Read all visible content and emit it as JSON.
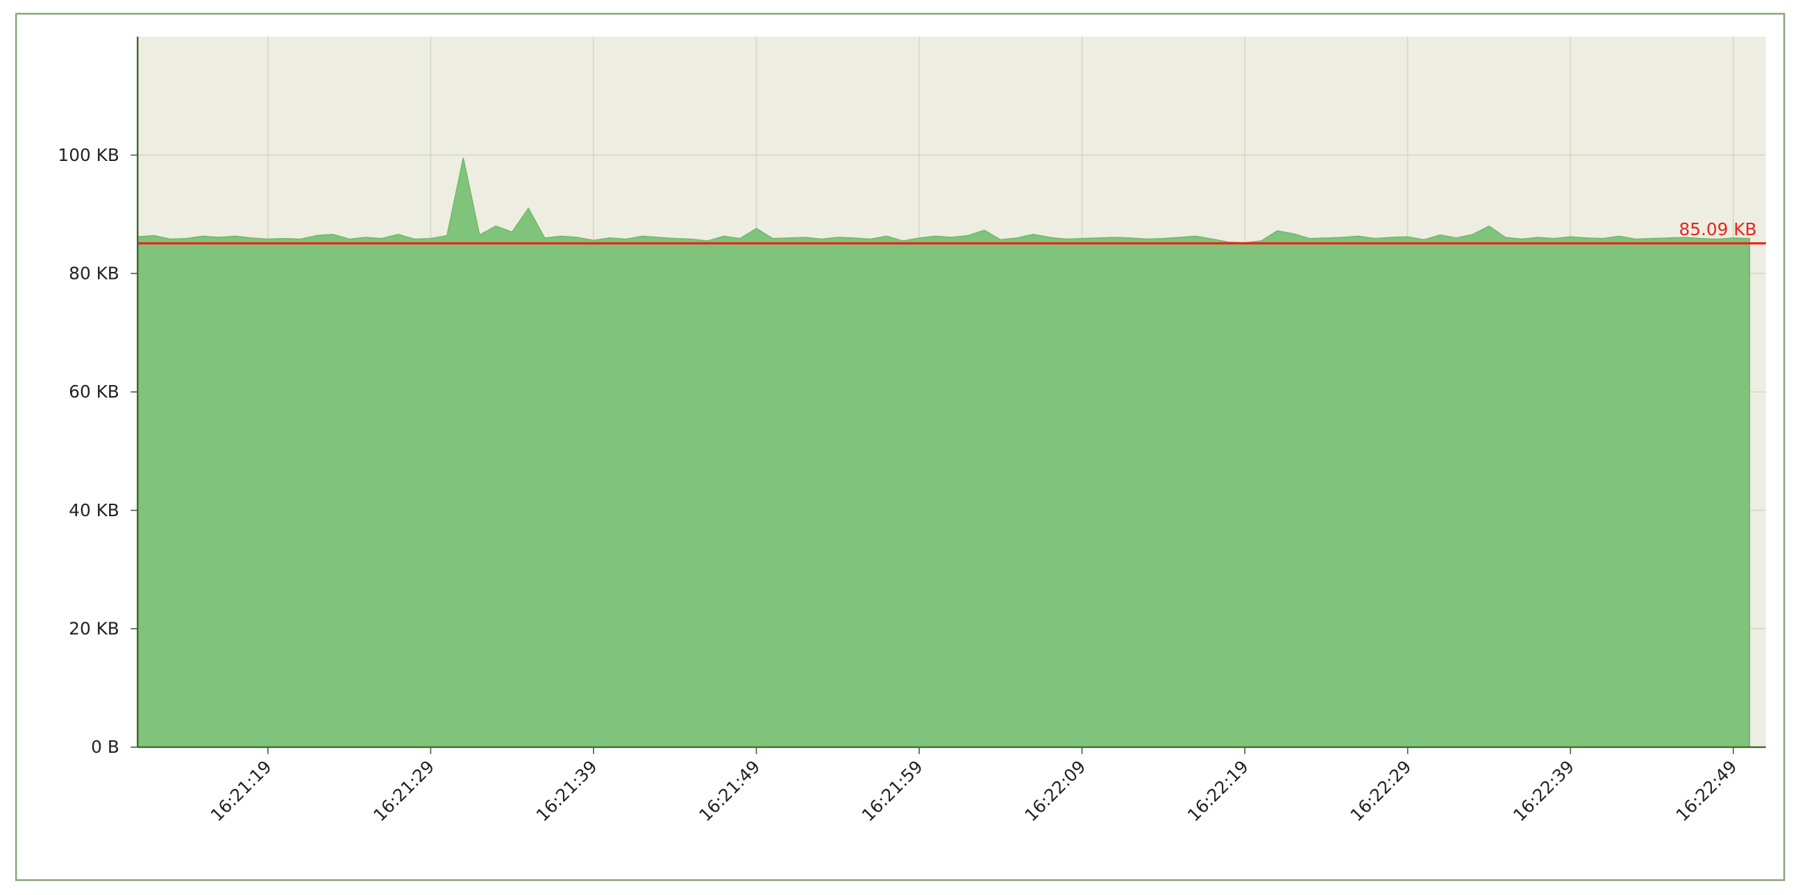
{
  "chart_data": {
    "type": "area",
    "x": [
      "16:21:11",
      "16:21:12",
      "16:21:13",
      "16:21:14",
      "16:21:15",
      "16:21:16",
      "16:21:17",
      "16:21:18",
      "16:21:19",
      "16:21:20",
      "16:21:21",
      "16:21:22",
      "16:21:23",
      "16:21:24",
      "16:21:25",
      "16:21:26",
      "16:21:27",
      "16:21:28",
      "16:21:29",
      "16:21:30",
      "16:21:31",
      "16:21:32",
      "16:21:33",
      "16:21:34",
      "16:21:35",
      "16:21:36",
      "16:21:37",
      "16:21:38",
      "16:21:39",
      "16:21:40",
      "16:21:41",
      "16:21:42",
      "16:21:43",
      "16:21:44",
      "16:21:45",
      "16:21:46",
      "16:21:47",
      "16:21:48",
      "16:21:49",
      "16:21:50",
      "16:21:51",
      "16:21:52",
      "16:21:53",
      "16:21:54",
      "16:21:55",
      "16:21:56",
      "16:21:57",
      "16:21:58",
      "16:21:59",
      "16:22:00",
      "16:22:01",
      "16:22:02",
      "16:22:03",
      "16:22:04",
      "16:22:05",
      "16:22:06",
      "16:22:07",
      "16:22:08",
      "16:22:09",
      "16:22:10",
      "16:22:11",
      "16:22:12",
      "16:22:13",
      "16:22:14",
      "16:22:15",
      "16:22:16",
      "16:22:17",
      "16:22:18",
      "16:22:19",
      "16:22:20",
      "16:22:21",
      "16:22:22",
      "16:22:23",
      "16:22:24",
      "16:22:25",
      "16:22:26",
      "16:22:27",
      "16:22:28",
      "16:22:29",
      "16:22:30",
      "16:22:31",
      "16:22:32",
      "16:22:33",
      "16:22:34",
      "16:22:35",
      "16:22:36",
      "16:22:37",
      "16:22:38",
      "16:22:39",
      "16:22:40",
      "16:22:41",
      "16:22:42",
      "16:22:43",
      "16:22:44",
      "16:22:45",
      "16:22:46",
      "16:22:47",
      "16:22:48",
      "16:22:49",
      "16:22:50"
    ],
    "values": [
      86.2,
      86.4,
      85.8,
      85.9,
      86.3,
      86.1,
      86.3,
      86.0,
      85.8,
      85.9,
      85.8,
      86.4,
      86.6,
      85.8,
      86.1,
      85.9,
      86.6,
      85.8,
      85.9,
      86.4,
      99.5,
      86.5,
      88.0,
      87.0,
      91.0,
      86.0,
      86.3,
      86.1,
      85.6,
      86.0,
      85.8,
      86.3,
      86.1,
      85.9,
      85.8,
      85.5,
      86.3,
      85.9,
      87.6,
      85.9,
      86.0,
      86.1,
      85.8,
      86.1,
      86.0,
      85.8,
      86.3,
      85.5,
      86.0,
      86.3,
      86.1,
      86.4,
      87.3,
      85.7,
      86.0,
      86.6,
      86.1,
      85.8,
      85.9,
      86.0,
      86.1,
      86.0,
      85.8,
      85.9,
      86.1,
      86.3,
      85.8,
      85.3,
      85.2,
      85.5,
      87.2,
      86.7,
      85.9,
      86.0,
      86.1,
      86.3,
      85.9,
      86.1,
      86.2,
      85.7,
      86.5,
      86.0,
      86.6,
      88.0,
      86.1,
      85.8,
      86.1,
      85.9,
      86.2,
      86.0,
      85.9,
      86.3,
      85.8,
      85.9,
      86.0,
      86.1,
      85.9,
      85.8,
      86.0,
      85.9
    ],
    "color": "#80c47c",
    "xlim": [
      "16:21:11",
      "16:22:51"
    ],
    "xticks": [
      "16:21:19",
      "16:21:29",
      "16:21:39",
      "16:21:49",
      "16:21:59",
      "16:22:09",
      "16:22:19",
      "16:22:29",
      "16:22:39",
      "16:22:49"
    ],
    "ylim": [
      0,
      120
    ],
    "yticks": [
      {
        "value": 0,
        "label": "0 B"
      },
      {
        "value": 20,
        "label": "20 KB"
      },
      {
        "value": 40,
        "label": "40 KB"
      },
      {
        "value": 60,
        "label": "60 KB"
      },
      {
        "value": 80,
        "label": "80 KB"
      },
      {
        "value": 100,
        "label": "100 KB"
      }
    ],
    "grid": true,
    "reference_line": {
      "value": 85.09,
      "label": "85.09 KB",
      "color": "#e8261c"
    }
  }
}
